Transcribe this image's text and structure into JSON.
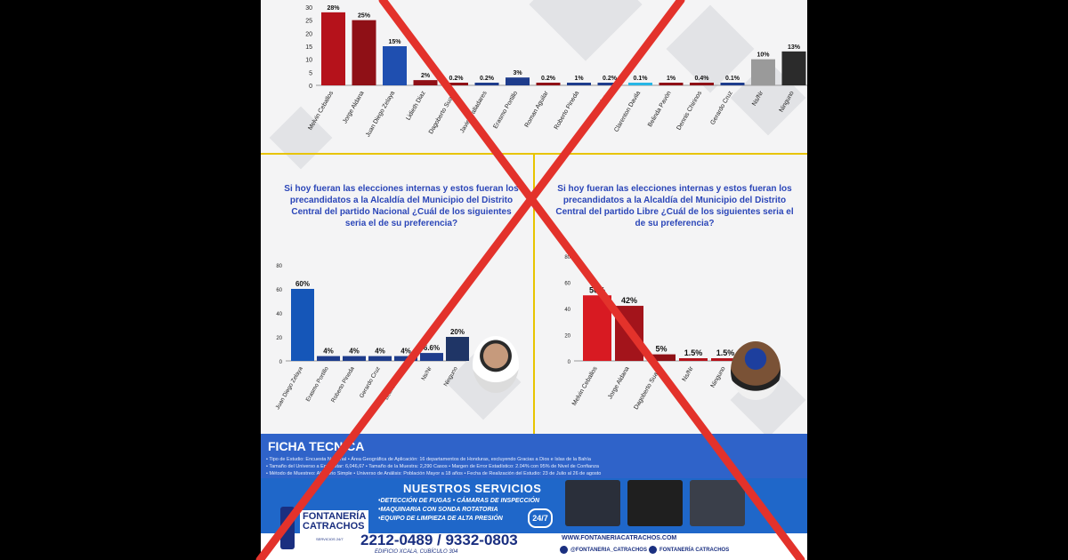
{
  "chart_data": [
    {
      "type": "bar",
      "title": "",
      "ylim": [
        0,
        30
      ],
      "yticks": [
        "0",
        "5",
        "10",
        "15",
        "20",
        "25",
        "30"
      ],
      "categories": [
        "Melvin Ceballos",
        "Jorge Aldana",
        "Juan Diego Zelaya",
        "Lidieth Diaz",
        "Dagoberto Suazo",
        "Javier Valladares",
        "Erasmo Portillo",
        "Roman Aguilar",
        "Roberto Pineda",
        "Eduardo Mar...",
        "Clarenton Davila",
        "Belinda Pavón",
        "Dennis Chirinos",
        "Gerardo Cruz",
        "Ns/Nr",
        "Ninguno"
      ],
      "values": [
        28,
        25,
        15,
        2,
        0.2,
        0.2,
        3,
        0.2,
        1,
        0.2,
        0.1,
        1,
        0.4,
        0.1,
        10,
        13
      ],
      "labels": [
        "28%",
        "25%",
        "15%",
        "2%",
        "0.2%",
        "0.2%",
        "3%",
        "0.2%",
        "1%",
        "0.2%",
        "0.1%",
        "1%",
        "0.4%",
        "0.1%",
        "10%",
        "13%"
      ],
      "colors": [
        "#b5121b",
        "#8f1016",
        "#1f4fb0",
        "#8f1016",
        "#8f1016",
        "#1e3c8c",
        "#1e3c8c",
        "#8f1016",
        "#1e3c8c",
        "#1e3c8c",
        "#27b6e6",
        "#8f1016",
        "#8f1016",
        "#1e3c8c",
        "#9a9a9a",
        "#2b2b2b"
      ]
    },
    {
      "type": "bar",
      "question": "Si hoy fueran las elecciones internas y estos fueran los precandidatos a la Alcaldía del Municipio del Distrito Central del partido Nacional ¿Cuál de los siguientes seria el de su preferencia?",
      "ylim": [
        0,
        80
      ],
      "yticks": [
        "0",
        "20",
        "40",
        "60",
        "80"
      ],
      "categories": [
        "Juan Diego Zelaya",
        "Erasmo Portillo",
        "Roberto Pineda",
        "Gerardo Cruz",
        "Belinda Pavón",
        "Ns/Nr",
        "Ninguno"
      ],
      "values": [
        60,
        4,
        4,
        4,
        4,
        6.6,
        20
      ],
      "labels": [
        "60%",
        "4%",
        "4%",
        "4%",
        "4%",
        "6.6%",
        "20%"
      ],
      "colors": [
        "#1556b8",
        "#1e3c8c",
        "#1e3c8c",
        "#1e3c8c",
        "#1e3c8c",
        "#1e3c8c",
        "#1f3566"
      ]
    },
    {
      "type": "bar",
      "question": "Si hoy fueran las elecciones internas y estos fueran los precandidatos a la Alcaldía del Municipio del Distrito Central del partido Libre ¿Cuál de los siguientes seria el de su preferencia?",
      "ylim": [
        0,
        80
      ],
      "yticks": [
        "0",
        "20",
        "40",
        "60",
        "80"
      ],
      "categories": [
        "Melvin Ceballos",
        "Jorge Aldana",
        "Dagoberto Suazo",
        "Ns/Nr",
        "Ninguno"
      ],
      "values": [
        50,
        42,
        5,
        1.5,
        1.5
      ],
      "labels": [
        "50%",
        "42%",
        "5%",
        "1.5%",
        "1.5%"
      ],
      "colors": [
        "#d81a22",
        "#a3141b",
        "#8f1016",
        "#b5121b",
        "#b5121b"
      ]
    }
  ],
  "ficha": {
    "title": "FICHA TECNICA",
    "lines": [
      "• Tipo de Estudio: Encuesta Nacional • Área Geográfica de Aplicación: 16 departamentos de Honduras, excluyendo Gracias a Dios e Islas de la Bahía",
      "• Tamaño del Universo a Encuestar: 6,046,67 • Tamaño de la Muestra: 2,290 Casos • Margen de Error Estadístico: 2.04% con 95% de Nivel de Confianza",
      "• Método de Muestreo: Aleatorio Simple • Universo de Análisis: Población Mayor a 18 años • Fecha de Realización del Estudio: 23 de Julio al 26 de agosto"
    ]
  },
  "ad": {
    "brand_line1": "FONTANERÍA",
    "brand_line2": "CATRACHOS",
    "brand_sub": "SERVICIOS 24/7",
    "services_title": "NUESTROS SERVICIOS",
    "services": [
      "•DETECCIÓN DE FUGAS • CÁMARAS DE INSPECCIÓN",
      "•MAQUINARIA CON SONDA ROTATORIA",
      "•EQUIPO DE LIMPIEZA DE ALTA PRESIÓN"
    ],
    "badge": "24/7",
    "phone": "2212-0489 / 9332-0803",
    "address": "EDIFICIO XCALA, CUBÍCULO 304",
    "web": "WWW.FONTANERIACATRACHOS.COM",
    "instagram": "@FONTANERIA_CATRACHOS",
    "facebook": "FONTANERÍA CATRACHOS"
  },
  "overlay": {
    "x_color": "#e3322b"
  }
}
